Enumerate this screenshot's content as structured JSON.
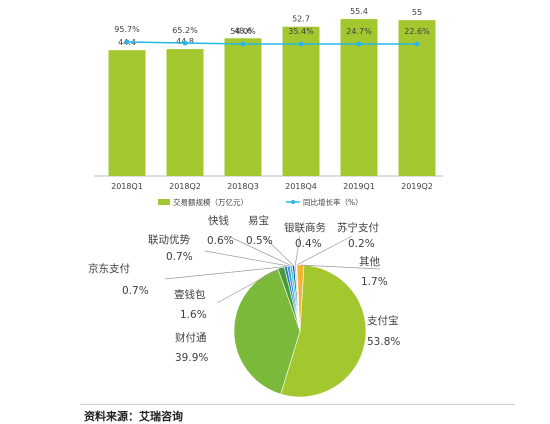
{
  "chart_data": [
    {
      "type": "bar",
      "categories": [
        "2018Q1",
        "2018Q2",
        "2018Q3",
        "2018Q4",
        "2019Q1",
        "2019Q2"
      ],
      "series": [
        {
          "name": "交易额规模（万亿元）",
          "type": "bar",
          "values": [
            44.4,
            44.8,
            48.6,
            52.7,
            55.4,
            55.0
          ],
          "color": "#a3c82f"
        },
        {
          "name": "同比增长率（%）",
          "type": "line",
          "values": [
            "95.7%",
            "65.2%",
            "54.0%",
            "35.4%",
            "24.7%",
            "22.6%"
          ],
          "color": "#29b6e8"
        }
      ],
      "ylim": [
        0,
        60
      ],
      "legend": "bottom"
    },
    {
      "type": "pie",
      "slices": [
        {
          "label": "支付宝",
          "value": "53.8%",
          "color": "#a3c82f"
        },
        {
          "label": "财付通",
          "value": "39.9%",
          "color": "#7bb93a"
        },
        {
          "label": "壹钱包",
          "value": "1.6%",
          "color": "#4a9a3c"
        },
        {
          "label": "京东支付",
          "value": "0.7%",
          "color": "#2e7fae"
        },
        {
          "label": "联动优势",
          "value": "0.7%",
          "color": "#3aa0dc"
        },
        {
          "label": "快钱",
          "value": "0.6%",
          "color": "#58c3e8"
        },
        {
          "label": "易宝",
          "value": "0.5%",
          "color": "#1b5e8a"
        },
        {
          "label": "银联商务",
          "value": "0.4%",
          "color": "#8fd3ee"
        },
        {
          "label": "苏宁支付",
          "value": "0.2%",
          "color": "#f28c28"
        },
        {
          "label": "其他",
          "value": "1.7%",
          "color": "#f5b335"
        }
      ]
    }
  ],
  "footer": {
    "source": "资料来源：艾瑞咨询"
  }
}
